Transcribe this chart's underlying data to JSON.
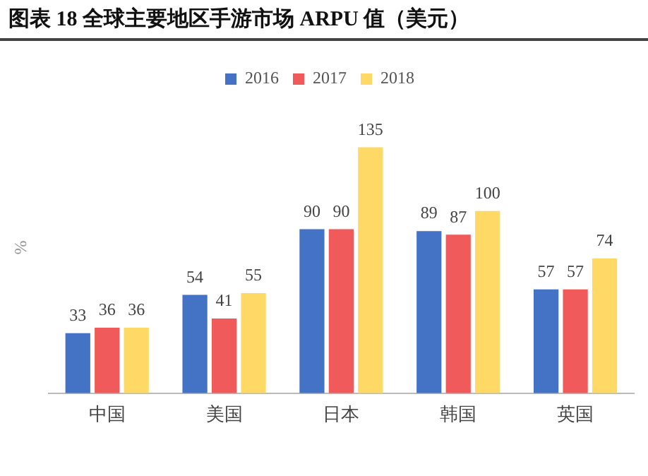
{
  "chart_data": {
    "type": "bar",
    "title": "图表 18 全球主要地区手游市场 ARPU 值（美元）",
    "ylabel": "%",
    "categories": [
      "中国",
      "美国",
      "日本",
      "韩国",
      "英国"
    ],
    "series": [
      {
        "name": "2016",
        "color": "#4472c4",
        "values": [
          33,
          54,
          90,
          89,
          57
        ]
      },
      {
        "name": "2017",
        "color": "#f05a5a",
        "values": [
          36,
          41,
          90,
          87,
          57
        ]
      },
      {
        "name": "2018",
        "color": "#ffd966",
        "values": [
          36,
          55,
          135,
          100,
          74
        ]
      }
    ],
    "data_labels": true,
    "legend": "top",
    "grid": false
  }
}
